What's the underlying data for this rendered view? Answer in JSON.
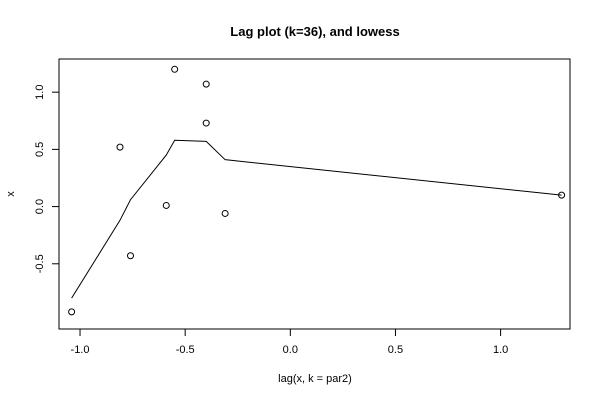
{
  "chart_data": {
    "type": "scatter",
    "title": "Lag plot (k=36), and lowess",
    "xlabel": "lag(x, k = par2)",
    "ylabel": "x",
    "xlim": [
      -1.1,
      1.33
    ],
    "ylim": [
      -1.07,
      1.29
    ],
    "x_ticks": [
      -1.0,
      -0.5,
      0.0,
      0.5,
      1.0
    ],
    "x_tick_labels": [
      "-1.0",
      "-0.5",
      "0.0",
      "0.5",
      "1.0"
    ],
    "y_ticks": [
      -0.5,
      0.0,
      0.5,
      1.0
    ],
    "y_tick_labels": [
      "-0.5",
      "0.0",
      "0.5",
      "1.0"
    ],
    "points": [
      {
        "x": -1.04,
        "y": -0.92
      },
      {
        "x": -0.81,
        "y": 0.52
      },
      {
        "x": -0.76,
        "y": -0.43
      },
      {
        "x": -0.59,
        "y": 0.01
      },
      {
        "x": -0.55,
        "y": 1.2
      },
      {
        "x": -0.4,
        "y": 1.07
      },
      {
        "x": -0.4,
        "y": 0.73
      },
      {
        "x": -0.31,
        "y": -0.06
      },
      {
        "x": 1.29,
        "y": 0.1
      }
    ],
    "lowess": [
      {
        "x": -1.04,
        "y": -0.8
      },
      {
        "x": -0.81,
        "y": -0.12
      },
      {
        "x": -0.76,
        "y": 0.06
      },
      {
        "x": -0.59,
        "y": 0.45
      },
      {
        "x": -0.55,
        "y": 0.58
      },
      {
        "x": -0.4,
        "y": 0.57
      },
      {
        "x": -0.31,
        "y": 0.41
      },
      {
        "x": 1.29,
        "y": 0.1
      }
    ],
    "grid": false,
    "legend": "none"
  }
}
